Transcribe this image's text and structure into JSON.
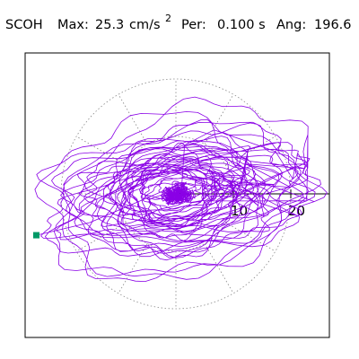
{
  "header": {
    "station": "SCOH",
    "max_label": "Max:",
    "max_value": "25.3",
    "max_unit": "cm/s",
    "max_exp": "2",
    "per_label": "Per:",
    "per_value": "0.100 s",
    "ang_label": "Ang:",
    "ang_value": "196.6"
  },
  "chart_data": {
    "type": "line",
    "title": "",
    "xlabel": "",
    "ylabel": "",
    "x_ticks": [
      "10",
      "20"
    ],
    "x_tick_values": [
      10,
      20
    ],
    "polar_rings": [
      10,
      20
    ],
    "polar_spoke_step_deg": 30,
    "grid": "dotted polar",
    "max_radius": 25.3,
    "peak_angle_deg": 196.6,
    "marker": {
      "x": -24.3,
      "y": -7.2,
      "color": "#009966"
    },
    "series": [
      {
        "color": "#8a00e6",
        "description_points": 0
      }
    ],
    "orbit_envelope": {
      "x_range": [
        -24.5,
        23.8
      ],
      "y_range": [
        -12.5,
        11.8
      ]
    }
  },
  "colors": {
    "trace": "#8a00e6",
    "marker": "#009966",
    "grid": "#888888",
    "axes": "#000000"
  }
}
